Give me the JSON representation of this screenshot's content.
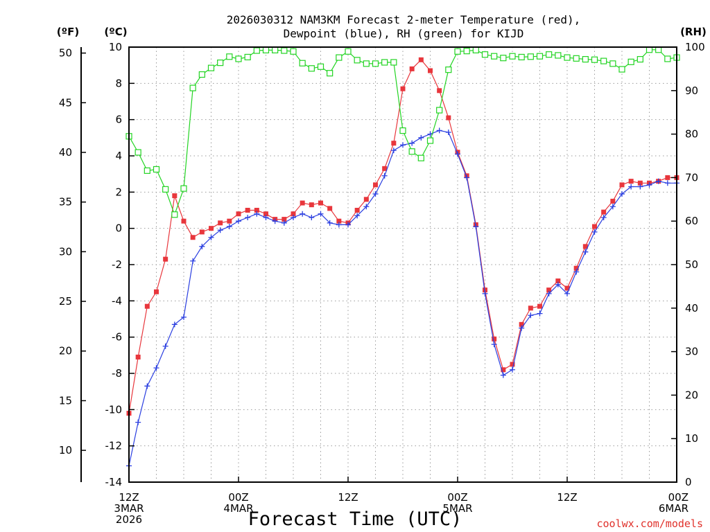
{
  "chart_data": {
    "type": "line",
    "title": "2026030312 NAM3KM Forecast 2-meter Temperature (red),",
    "subtitle": "Dewpoint (blue), RH (green) for KIJD",
    "xlabel": "Forecast Time (UTC)",
    "credit": "coolwx.com/models",
    "axes": {
      "left_outer": {
        "label": "(ºF)",
        "ticks": [
          10,
          15,
          20,
          25,
          30,
          35,
          40,
          45,
          50
        ],
        "ylim": [
          6.8,
          50.6
        ]
      },
      "left_inner": {
        "label": "(ºC)",
        "ticks": [
          -14,
          -12,
          -10,
          -8,
          -6,
          -4,
          -2,
          0,
          2,
          4,
          6,
          8,
          10
        ],
        "ylim": [
          -14,
          10
        ]
      },
      "right": {
        "label": "(RH)",
        "ticks": [
          0,
          10,
          20,
          30,
          40,
          50,
          60,
          70,
          80,
          90,
          100
        ],
        "ylim": [
          0,
          100
        ]
      },
      "x": {
        "xlim": [
          0,
          60
        ],
        "ticks": [
          {
            "hour": 0,
            "lines": [
              "12Z",
              "3MAR",
              "2026"
            ]
          },
          {
            "hour": 12,
            "lines": [
              "00Z",
              "4MAR"
            ]
          },
          {
            "hour": 24,
            "lines": [
              "12Z"
            ]
          },
          {
            "hour": 36,
            "lines": [
              "00Z",
              "5MAR"
            ]
          },
          {
            "hour": 48,
            "lines": [
              "12Z"
            ]
          },
          {
            "hour": 60,
            "lines": [
              "00Z",
              "6MAR"
            ]
          }
        ]
      }
    },
    "grid": true,
    "colors": {
      "temperature": "#e8363c",
      "dewpoint": "#2a3ee0",
      "rh": "#22d422",
      "grid": "#9a9a9a"
    },
    "series": [
      {
        "name": "Temperature",
        "units": "C",
        "axis": "left_inner",
        "marker": "filled-square",
        "color": "#e8363c",
        "x": [
          0,
          1,
          2,
          3,
          4,
          5,
          6,
          7,
          8,
          9,
          10,
          11,
          12,
          13,
          14,
          15,
          16,
          17,
          18,
          19,
          20,
          21,
          22,
          23,
          24,
          25,
          26,
          27,
          28,
          29,
          30,
          31,
          32,
          33,
          34,
          35,
          36,
          37,
          38,
          39,
          40,
          41,
          42,
          43,
          44,
          45,
          46,
          47,
          48,
          49,
          50,
          51,
          52,
          53,
          54,
          55,
          56,
          57,
          58,
          59,
          60
        ],
        "values": [
          -10.2,
          -7.1,
          -4.3,
          -3.5,
          -1.7,
          1.8,
          0.4,
          -0.5,
          -0.2,
          0.0,
          0.3,
          0.4,
          0.8,
          1.0,
          1.0,
          0.8,
          0.5,
          0.5,
          0.8,
          1.4,
          1.3,
          1.4,
          1.1,
          0.4,
          0.3,
          1.0,
          1.6,
          2.4,
          3.3,
          4.7,
          7.7,
          8.8,
          9.3,
          8.7,
          7.6,
          6.1,
          4.2,
          2.9,
          0.2,
          -3.4,
          -6.1,
          -7.8,
          -7.5,
          -5.3,
          -4.4,
          -4.3,
          -3.4,
          -2.9,
          -3.3,
          -2.2,
          -1.0,
          0.1,
          0.9,
          1.5,
          2.4,
          2.6,
          2.5,
          2.5,
          2.6,
          2.8,
          2.8
        ]
      },
      {
        "name": "Dewpoint",
        "units": "C",
        "axis": "left_inner",
        "marker": "plus",
        "color": "#2a3ee0",
        "x": [
          0,
          1,
          2,
          3,
          4,
          5,
          6,
          7,
          8,
          9,
          10,
          11,
          12,
          13,
          14,
          15,
          16,
          17,
          18,
          19,
          20,
          21,
          22,
          23,
          24,
          25,
          26,
          27,
          28,
          29,
          30,
          31,
          32,
          33,
          34,
          35,
          36,
          37,
          38,
          39,
          40,
          41,
          42,
          43,
          44,
          45,
          46,
          47,
          48,
          49,
          50,
          51,
          52,
          53,
          54,
          55,
          56,
          57,
          58,
          59,
          60
        ],
        "values": [
          -13.1,
          -10.7,
          -8.7,
          -7.7,
          -6.5,
          -5.3,
          -4.9,
          -1.8,
          -1.0,
          -0.5,
          -0.1,
          0.1,
          0.4,
          0.6,
          0.8,
          0.6,
          0.4,
          0.3,
          0.6,
          0.8,
          0.6,
          0.8,
          0.3,
          0.2,
          0.2,
          0.7,
          1.2,
          1.9,
          2.9,
          4.3,
          4.6,
          4.7,
          5.0,
          5.2,
          5.4,
          5.3,
          4.1,
          2.8,
          0.1,
          -3.6,
          -6.4,
          -8.1,
          -7.8,
          -5.5,
          -4.8,
          -4.7,
          -3.6,
          -3.1,
          -3.6,
          -2.4,
          -1.3,
          -0.2,
          0.6,
          1.2,
          1.9,
          2.3,
          2.3,
          2.4,
          2.6,
          2.5,
          2.5
        ]
      },
      {
        "name": "RH",
        "units": "%",
        "axis": "right",
        "marker": "open-square",
        "color": "#22d422",
        "x": [
          0,
          1,
          2,
          3,
          4,
          5,
          6,
          7,
          8,
          9,
          10,
          11,
          12,
          13,
          14,
          15,
          16,
          17,
          18,
          19,
          20,
          21,
          22,
          23,
          24,
          25,
          26,
          27,
          28,
          29,
          30,
          31,
          32,
          33,
          34,
          35,
          36,
          37,
          38,
          39,
          40,
          41,
          42,
          43,
          44,
          45,
          46,
          47,
          48,
          49,
          50,
          51,
          52,
          53,
          54,
          55,
          56,
          57,
          58,
          59,
          60
        ],
        "values": [
          79.5,
          75.8,
          71.6,
          71.9,
          67.3,
          61.5,
          67.5,
          90.6,
          93.7,
          95.2,
          96.4,
          97.8,
          97.3,
          97.7,
          99.2,
          99.3,
          99.3,
          99.2,
          99.0,
          96.3,
          95.1,
          95.5,
          94.0,
          97.6,
          99.0,
          97.0,
          96.2,
          96.2,
          96.5,
          96.5,
          80.8,
          76.0,
          74.5,
          78.5,
          85.5,
          94.8,
          99.0,
          99.1,
          99.3,
          98.3,
          97.9,
          97.5,
          97.9,
          97.7,
          97.8,
          97.9,
          98.3,
          98.1,
          97.6,
          97.4,
          97.2,
          97.1,
          96.8,
          96.2,
          94.9,
          96.6,
          97.2,
          99.4,
          99.4,
          97.3,
          97.6
        ]
      }
    ]
  }
}
